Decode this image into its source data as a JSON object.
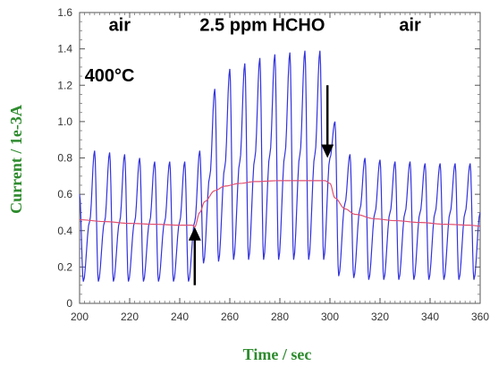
{
  "chart_data": {
    "type": "line",
    "xlabel": "Time / sec",
    "ylabel": "Current / 1e-3A",
    "xlim": [
      200,
      360
    ],
    "ylim": [
      0,
      1.6
    ],
    "xticks": [
      "200",
      "220",
      "240",
      "260",
      "280",
      "300",
      "320",
      "340",
      "360"
    ],
    "yticks": [
      "0",
      "0.2",
      "0.4",
      "0.6",
      "0.8",
      "1.0",
      "1.2",
      "1.4",
      "1.6"
    ],
    "grid": false,
    "annotations": [
      {
        "text": "air",
        "x": 216,
        "y": 1.5
      },
      {
        "text": "2.5 ppm HCHO",
        "x": 273,
        "y": 1.5
      },
      {
        "text": "air",
        "x": 332,
        "y": 1.5
      },
      {
        "text": "400°C",
        "x": 212,
        "y": 1.22
      }
    ],
    "arrows": [
      {
        "name": "gas-on",
        "x": 246,
        "from_y": 0.1,
        "to_y": 0.42,
        "direction": "up"
      },
      {
        "name": "gas-off",
        "x": 299,
        "from_y": 1.2,
        "to_y": 0.8,
        "direction": "down"
      }
    ],
    "series": [
      {
        "color": "#3333dd",
        "x": [
          200,
          201.5,
          204,
          206,
          207.5,
          210,
          212,
          213.5,
          216,
          218,
          219.5,
          222,
          224,
          225.5,
          228,
          230,
          231.5,
          234,
          236,
          237.5,
          240,
          242,
          243.5,
          246,
          248,
          249.5,
          252,
          254,
          255.5,
          258,
          260,
          261.5,
          264,
          266,
          267.5,
          270,
          272,
          273.5,
          276,
          278,
          279.5,
          282,
          284,
          285.5,
          288,
          290,
          291.5,
          294,
          296,
          297.5,
          300,
          302,
          303.5,
          306,
          308,
          309.5,
          312,
          314,
          315.5,
          318,
          320,
          321.5,
          324,
          326,
          327.5,
          330,
          332,
          333.5,
          336,
          338,
          339.5,
          342,
          344,
          345.5,
          348,
          350,
          351.5,
          354,
          356,
          357.5,
          360
        ],
        "y": [
          0.6,
          0.12,
          0.45,
          0.84,
          0.12,
          0.45,
          0.83,
          0.12,
          0.45,
          0.82,
          0.12,
          0.45,
          0.8,
          0.12,
          0.45,
          0.78,
          0.12,
          0.45,
          0.78,
          0.12,
          0.45,
          0.78,
          0.12,
          0.45,
          0.84,
          0.22,
          0.7,
          1.18,
          0.23,
          0.75,
          1.29,
          0.24,
          0.78,
          1.32,
          0.24,
          0.8,
          1.35,
          0.24,
          0.82,
          1.37,
          0.24,
          0.82,
          1.38,
          0.24,
          0.82,
          1.39,
          0.24,
          0.82,
          1.39,
          0.24,
          0.8,
          1.0,
          0.15,
          0.55,
          0.82,
          0.14,
          0.52,
          0.8,
          0.13,
          0.5,
          0.79,
          0.13,
          0.5,
          0.78,
          0.13,
          0.5,
          0.78,
          0.13,
          0.5,
          0.77,
          0.13,
          0.5,
          0.77,
          0.13,
          0.5,
          0.77,
          0.13,
          0.5,
          0.77,
          0.13,
          0.5
        ]
      },
      {
        "color": "#e05070",
        "x": [
          200,
          210,
          220,
          230,
          240,
          245,
          246,
          248,
          250,
          254,
          258,
          264,
          270,
          280,
          290,
          298,
          300,
          302,
          306,
          310,
          318,
          326,
          336,
          346,
          356,
          360
        ],
        "y": [
          0.46,
          0.45,
          0.44,
          0.435,
          0.43,
          0.43,
          0.42,
          0.5,
          0.56,
          0.62,
          0.645,
          0.66,
          0.67,
          0.675,
          0.675,
          0.675,
          0.66,
          0.58,
          0.52,
          0.49,
          0.465,
          0.455,
          0.445,
          0.435,
          0.43,
          0.425
        ]
      }
    ]
  }
}
